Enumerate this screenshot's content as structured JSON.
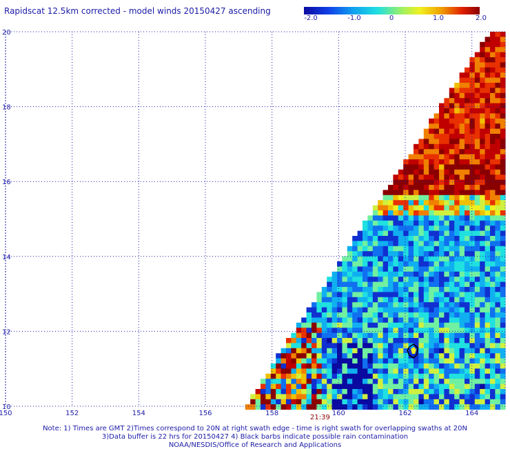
{
  "title": "Rapidscat 12.5km corrected - model winds 20150427 ascending",
  "colorbar": {
    "labels": [
      "-2.0",
      "-1.0",
      "0",
      "1.0",
      "2.0"
    ],
    "values": [
      -2.0,
      -1.0,
      0,
      1.0,
      2.0
    ],
    "colors": [
      "#1010c8",
      "#1060e0",
      "#10c0e0",
      "#60e070",
      "#f0f020",
      "#f0a000",
      "#e03000",
      "#a00000"
    ]
  },
  "map": {
    "lon_range": [
      150,
      165
    ],
    "lat_range": [
      10,
      20
    ],
    "x_ticks": [
      "150",
      "152",
      "154",
      "156",
      "158",
      "160",
      "162",
      "164"
    ],
    "y_ticks": [
      "10",
      "12",
      "14",
      "16",
      "18",
      "20"
    ]
  },
  "time_label": "21:39",
  "notes": [
    "Note: 1) Times are GMT 2)Times correspond to 20N at right swath edge - time is right swath for overlapping swaths at 20N",
    "3)Data buffer is 22 hrs for 20150427 4) Black barbs indicate possible rain contamination",
    "NOAA/NESDIS/Office of Research and Applications"
  ]
}
